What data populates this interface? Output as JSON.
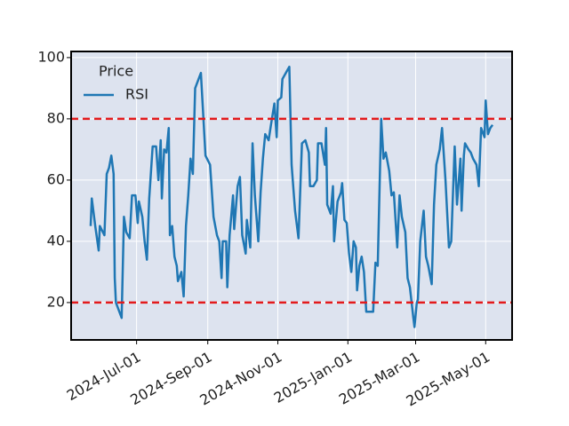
{
  "chart_data": {
    "type": "line",
    "legend_title": "Price",
    "legend": "upper left",
    "grid": true,
    "x": [
      "2024-05-22",
      "2024-05-23",
      "2024-05-26",
      "2024-05-29",
      "2024-05-30",
      "2024-06-03",
      "2024-06-05",
      "2024-06-07",
      "2024-06-09",
      "2024-06-11",
      "2024-06-12",
      "2024-06-13",
      "2024-06-15",
      "2024-06-18",
      "2024-06-20",
      "2024-06-22",
      "2024-06-25",
      "2024-06-27",
      "2024-06-30",
      "2024-07-02",
      "2024-07-03",
      "2024-07-06",
      "2024-07-08",
      "2024-07-10",
      "2024-07-12",
      "2024-07-15",
      "2024-07-18",
      "2024-07-20",
      "2024-07-22",
      "2024-07-23",
      "2024-07-25",
      "2024-07-27",
      "2024-07-29",
      "2024-07-30",
      "2024-08-01",
      "2024-08-03",
      "2024-08-05",
      "2024-08-06",
      "2024-08-09",
      "2024-08-11",
      "2024-08-13",
      "2024-08-15",
      "2024-08-17",
      "2024-08-19",
      "2024-08-21",
      "2024-08-24",
      "2024-08-26",
      "2024-08-30",
      "2024-09-03",
      "2024-09-06",
      "2024-09-09",
      "2024-09-11",
      "2024-09-13",
      "2024-09-14",
      "2024-09-17",
      "2024-09-18",
      "2024-09-20",
      "2024-09-23",
      "2024-09-24",
      "2024-09-27",
      "2024-09-29",
      "2024-10-01",
      "2024-10-04",
      "2024-10-05",
      "2024-10-08",
      "2024-10-10",
      "2024-10-12",
      "2024-10-15",
      "2024-10-17",
      "2024-10-19",
      "2024-10-21",
      "2024-10-24",
      "2024-10-26",
      "2024-10-29",
      "2024-10-31",
      "2024-11-01",
      "2024-11-04",
      "2024-11-05",
      "2024-11-08",
      "2024-11-11",
      "2024-11-13",
      "2024-11-16",
      "2024-11-19",
      "2024-11-22",
      "2024-11-25",
      "2024-11-28",
      "2024-11-29",
      "2024-12-02",
      "2024-12-05",
      "2024-12-06",
      "2024-12-09",
      "2024-12-12",
      "2024-12-13",
      "2024-12-14",
      "2024-12-17",
      "2024-12-19",
      "2024-12-20",
      "2024-12-23",
      "2024-12-26",
      "2024-12-27",
      "2024-12-29",
      "2024-12-31",
      "2025-01-02",
      "2025-01-04",
      "2025-01-06",
      "2025-01-08",
      "2025-01-09",
      "2025-01-11",
      "2025-01-13",
      "2025-01-15",
      "2025-01-17",
      "2025-01-20",
      "2025-01-23",
      "2025-01-25",
      "2025-01-27",
      "2025-01-30",
      "2025-02-01",
      "2025-02-03",
      "2025-02-06",
      "2025-02-08",
      "2025-02-10",
      "2025-02-13",
      "2025-02-15",
      "2025-02-17",
      "2025-02-20",
      "2025-02-22",
      "2025-02-24",
      "2025-02-27",
      "2025-02-28",
      "2025-03-02",
      "2025-03-03",
      "2025-03-05",
      "2025-03-08",
      "2025-03-10",
      "2025-03-12",
      "2025-03-15",
      "2025-03-17",
      "2025-03-19",
      "2025-03-22",
      "2025-03-24",
      "2025-03-27",
      "2025-03-30",
      "2025-04-01",
      "2025-04-04",
      "2025-04-06",
      "2025-04-09",
      "2025-04-10",
      "2025-04-12",
      "2025-04-13",
      "2025-04-16",
      "2025-04-18",
      "2025-04-20",
      "2025-04-23",
      "2025-04-25",
      "2025-04-27",
      "2025-04-30",
      "2025-05-01",
      "2025-05-03",
      "2025-05-05",
      "2025-05-07"
    ],
    "series": [
      {
        "name": "RSI",
        "color": "#1f77b4",
        "values": [
          45,
          54,
          45,
          37,
          45,
          42,
          62,
          64,
          68,
          62,
          28,
          20,
          18,
          15,
          48,
          43,
          41,
          55,
          55,
          46,
          53,
          48,
          40,
          34,
          54,
          71,
          71,
          60,
          73,
          54,
          70,
          69,
          77,
          42,
          45,
          35,
          32,
          27,
          30,
          22,
          45,
          55,
          67,
          62,
          90,
          93,
          95,
          68,
          65,
          48,
          42,
          40,
          28,
          40,
          40,
          25,
          42,
          55,
          44,
          58,
          61,
          42,
          36,
          47,
          38,
          72,
          55,
          40,
          56,
          67,
          75,
          73,
          78,
          85,
          74,
          86,
          87,
          93,
          95,
          97,
          65,
          50,
          41,
          72,
          73,
          69,
          58,
          58,
          60,
          72,
          72,
          65,
          77,
          52,
          49,
          58,
          40,
          53,
          56,
          59,
          47,
          46,
          36,
          30,
          40,
          38,
          24,
          32,
          35,
          30,
          17,
          17,
          17,
          33,
          32,
          80,
          67,
          69,
          63,
          55,
          56,
          38,
          55,
          48,
          43,
          28,
          25,
          15,
          12,
          20,
          21,
          40,
          50,
          35,
          32,
          26,
          52,
          65,
          70,
          77,
          60,
          38,
          40,
          71,
          52,
          67,
          50,
          68,
          72,
          70,
          69,
          67,
          65,
          58,
          77,
          74,
          86,
          75,
          77,
          78
        ]
      }
    ],
    "hlines": [
      {
        "value": 80,
        "color": "#e31a1c"
      },
      {
        "value": 20,
        "color": "#e31a1c"
      }
    ],
    "xlim": [
      "2024-05-05",
      "2025-05-24"
    ],
    "xticks": [
      {
        "value": "2024-07-01",
        "label": "2024-Jul-01"
      },
      {
        "value": "2024-09-01",
        "label": "2024-Sep-01"
      },
      {
        "value": "2024-11-01",
        "label": "2024-Nov-01"
      },
      {
        "value": "2025-01-01",
        "label": "2025-Jan-01"
      },
      {
        "value": "2025-03-01",
        "label": "2025-Mar-01"
      },
      {
        "value": "2025-05-01",
        "label": "2025-May-01"
      }
    ],
    "ylim": [
      7.8,
      102
    ],
    "yticks": [
      20,
      40,
      60,
      80,
      100
    ]
  }
}
